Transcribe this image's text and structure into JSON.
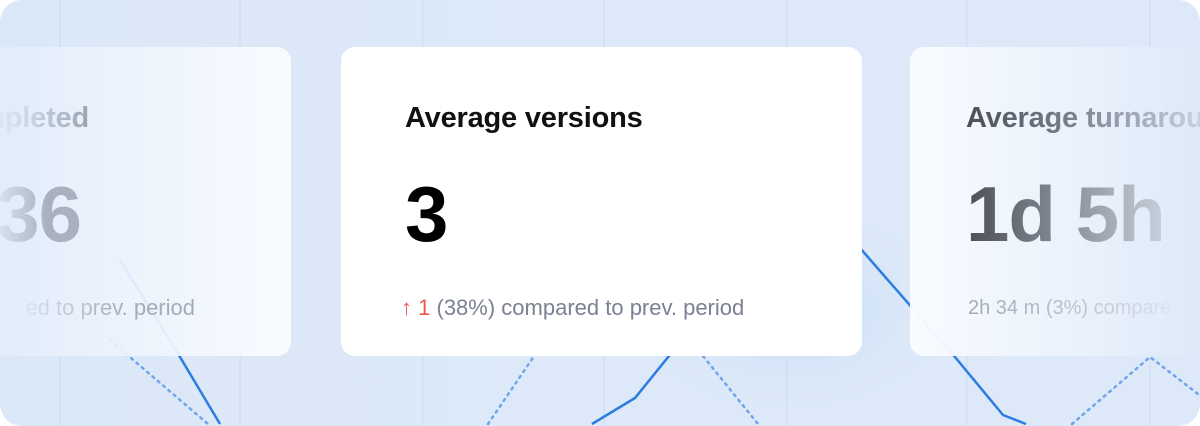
{
  "cards": [
    {
      "title": "Tasks completed",
      "visible_title": "pleted",
      "value": "36",
      "visible_value": "36",
      "comparison": "ed to prev. period",
      "state": "faded-left"
    },
    {
      "title": "Average versions",
      "value": "3",
      "delta_arrow": "↑",
      "delta_value": "1",
      "comparison": "(38%) compared to prev. period",
      "state": "focused"
    },
    {
      "title": "Average turnaround",
      "visible_title": "Average turnar",
      "value": "1d 5h",
      "comparison": "2h 34 m (3%) compare",
      "state": "faded-right"
    }
  ],
  "colors": {
    "background": "#dce9f8",
    "line": "#2b7de0",
    "delta_up": "#f0574a",
    "muted_text": "#7a8193"
  },
  "icons": {
    "delta": "arrow-up-icon"
  }
}
